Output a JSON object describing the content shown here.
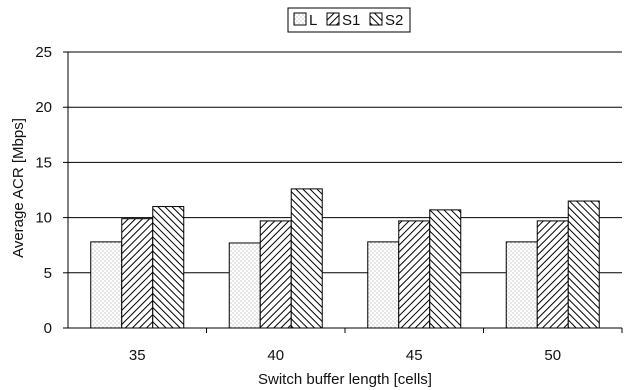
{
  "chart_data": {
    "type": "bar",
    "categories": [
      "35",
      "40",
      "45",
      "50"
    ],
    "series": [
      {
        "name": "L",
        "pattern": "dots",
        "values": [
          7.8,
          7.7,
          7.8,
          7.8
        ]
      },
      {
        "name": "S1",
        "pattern": "diagonal-up",
        "values": [
          9.9,
          9.7,
          9.7,
          9.7
        ]
      },
      {
        "name": "S2",
        "pattern": "diagonal-down",
        "values": [
          11.0,
          12.6,
          10.7,
          11.5
        ]
      }
    ],
    "xlabel": "Switch buffer length [cells]",
    "ylabel": "Average ACR [Mbps]",
    "ylim": [
      0,
      25
    ],
    "yticks": [
      0,
      5,
      10,
      15,
      20,
      25
    ],
    "grid": true,
    "legend_position": "top-center",
    "colors": {
      "line": "#000000",
      "fill": "#ffffff",
      "dots": "#888888"
    }
  }
}
